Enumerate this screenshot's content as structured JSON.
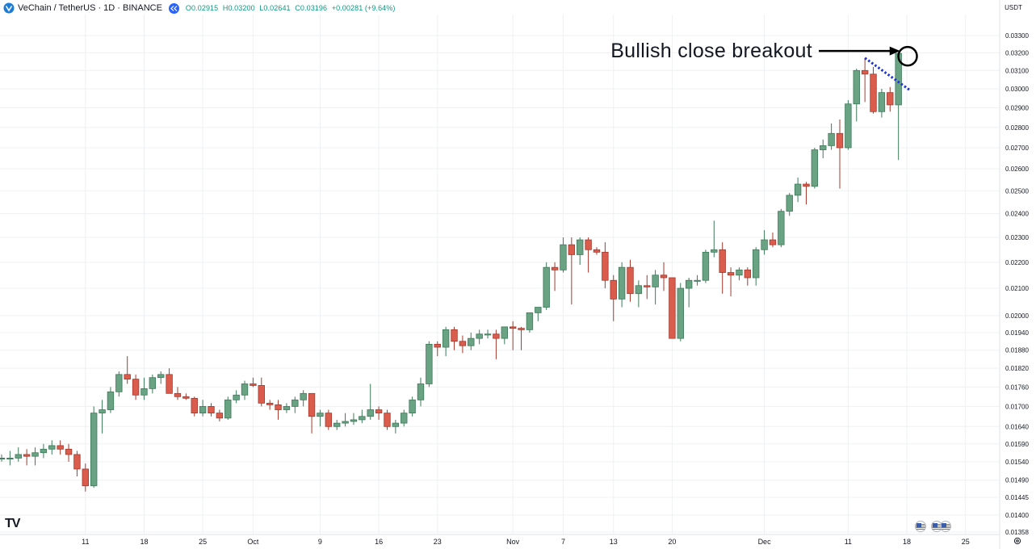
{
  "header": {
    "symbol_title": "VeChain / TetherUS · 1D · BINANCE",
    "ohlc": {
      "open": "O0.02915",
      "high": "H0.03200",
      "low": "L0.02641",
      "close": "C0.03196",
      "change": "+0.00281 (+9.64%)"
    },
    "currency": "USDT"
  },
  "annotation": {
    "text": "Bullish close breakout"
  },
  "logo": "TV",
  "colors": {
    "up": "#6aa383",
    "down": "#d95c4d",
    "grid": "#eef0f3",
    "trend": "#1f33d6"
  },
  "chart_data": {
    "type": "candlestick",
    "title": "VeChain / TetherUS · 1D · BINANCE",
    "xlabel": "",
    "ylabel": "USDT",
    "y_axis_ticks": [
      0.033,
      0.032,
      0.031,
      0.03,
      0.029,
      0.028,
      0.027,
      0.026,
      0.025,
      0.024,
      0.023,
      0.022,
      0.021,
      0.02,
      0.0194,
      0.0188,
      0.0182,
      0.0176,
      0.017,
      0.0164,
      0.0159,
      0.0154,
      0.0149,
      0.01445,
      0.014,
      0.01358
    ],
    "y_axis_labels": [
      "0.03300",
      "0.03200",
      "0.03100",
      "0.03000",
      "0.02900",
      "0.02800",
      "0.02700",
      "0.02600",
      "0.02500",
      "0.02400",
      "0.02300",
      "0.02200",
      "0.02100",
      "0.02000",
      "0.01940",
      "0.01880",
      "0.01820",
      "0.01760",
      "0.01700",
      "0.01640",
      "0.01590",
      "0.01540",
      "0.01490",
      "0.01445",
      "0.01400",
      "0.01358"
    ],
    "x_axis_ticks": [
      {
        "label": "11",
        "index": 10
      },
      {
        "label": "18",
        "index": 17
      },
      {
        "label": "25",
        "index": 24
      },
      {
        "label": "Oct",
        "index": 30
      },
      {
        "label": "9",
        "index": 38
      },
      {
        "label": "16",
        "index": 45
      },
      {
        "label": "23",
        "index": 52
      },
      {
        "label": "Nov",
        "index": 61
      },
      {
        "label": "7",
        "index": 67
      },
      {
        "label": "13",
        "index": 73
      },
      {
        "label": "20",
        "index": 80
      },
      {
        "label": "Dec",
        "index": 91
      },
      {
        "label": "11",
        "index": 101
      },
      {
        "label": "18",
        "index": 108
      },
      {
        "label": "25",
        "index": 115
      }
    ],
    "candles": [
      [
        0.0155,
        0.0156,
        0.0154,
        0.0155
      ],
      [
        0.0155,
        0.0157,
        0.0153,
        0.0155
      ],
      [
        0.0155,
        0.0158,
        0.0154,
        0.0156
      ],
      [
        0.0156,
        0.01575,
        0.0153,
        0.01555
      ],
      [
        0.01555,
        0.0158,
        0.0153,
        0.01565
      ],
      [
        0.01565,
        0.0159,
        0.0155,
        0.01575
      ],
      [
        0.01575,
        0.016,
        0.0156,
        0.01585
      ],
      [
        0.01585,
        0.016,
        0.0156,
        0.01575
      ],
      [
        0.01575,
        0.0159,
        0.0154,
        0.0156
      ],
      [
        0.0156,
        0.0157,
        0.015,
        0.0152
      ],
      [
        0.0152,
        0.01535,
        0.0146,
        0.01475
      ],
      [
        0.01475,
        0.017,
        0.0147,
        0.0168
      ],
      [
        0.0168,
        0.0172,
        0.0162,
        0.0169
      ],
      [
        0.0169,
        0.0176,
        0.0168,
        0.01745
      ],
      [
        0.01745,
        0.0181,
        0.0173,
        0.018
      ],
      [
        0.018,
        0.0186,
        0.0177,
        0.01785
      ],
      [
        0.01785,
        0.018,
        0.0172,
        0.01735
      ],
      [
        0.01735,
        0.0179,
        0.0172,
        0.01755
      ],
      [
        0.01755,
        0.018,
        0.0174,
        0.0179
      ],
      [
        0.0179,
        0.0181,
        0.0177,
        0.018
      ],
      [
        0.018,
        0.0182,
        0.0174,
        0.0174
      ],
      [
        0.0174,
        0.0176,
        0.0172,
        0.0173
      ],
      [
        0.0173,
        0.0174,
        0.0172,
        0.01725
      ],
      [
        0.01725,
        0.0173,
        0.0167,
        0.0168
      ],
      [
        0.0168,
        0.0172,
        0.0167,
        0.017
      ],
      [
        0.017,
        0.0171,
        0.0167,
        0.0168
      ],
      [
        0.0168,
        0.0169,
        0.01655,
        0.01665
      ],
      [
        0.01665,
        0.0173,
        0.0166,
        0.0172
      ],
      [
        0.0172,
        0.0175,
        0.0171,
        0.01735
      ],
      [
        0.01735,
        0.0178,
        0.0172,
        0.0177
      ],
      [
        0.0177,
        0.0179,
        0.0176,
        0.01765
      ],
      [
        0.01765,
        0.0179,
        0.017,
        0.0171
      ],
      [
        0.0171,
        0.0172,
        0.0169,
        0.01705
      ],
      [
        0.01705,
        0.0172,
        0.0166,
        0.0169
      ],
      [
        0.0169,
        0.0171,
        0.0168,
        0.017
      ],
      [
        0.017,
        0.0173,
        0.0168,
        0.0172
      ],
      [
        0.0172,
        0.0175,
        0.017,
        0.0174
      ],
      [
        0.0174,
        0.0174,
        0.0162,
        0.0167
      ],
      [
        0.0167,
        0.0169,
        0.0164,
        0.0168
      ],
      [
        0.0168,
        0.0169,
        0.0163,
        0.0164
      ],
      [
        0.0164,
        0.0166,
        0.0163,
        0.0165
      ],
      [
        0.0165,
        0.0168,
        0.0164,
        0.01655
      ],
      [
        0.01655,
        0.0168,
        0.01645,
        0.0166
      ],
      [
        0.0166,
        0.0169,
        0.0165,
        0.0167
      ],
      [
        0.0167,
        0.0177,
        0.0166,
        0.0169
      ],
      [
        0.0169,
        0.017,
        0.0166,
        0.0168
      ],
      [
        0.0168,
        0.0169,
        0.0163,
        0.0164
      ],
      [
        0.0164,
        0.0166,
        0.0162,
        0.0165
      ],
      [
        0.0165,
        0.0169,
        0.0164,
        0.0168
      ],
      [
        0.0168,
        0.0173,
        0.0167,
        0.0172
      ],
      [
        0.0172,
        0.0179,
        0.017,
        0.0177
      ],
      [
        0.0177,
        0.0191,
        0.0176,
        0.019
      ],
      [
        0.019,
        0.0191,
        0.0186,
        0.0189
      ],
      [
        0.0189,
        0.0196,
        0.0186,
        0.0195
      ],
      [
        0.0195,
        0.0196,
        0.0188,
        0.0191
      ],
      [
        0.0191,
        0.0193,
        0.0187,
        0.01895
      ],
      [
        0.01895,
        0.0194,
        0.0188,
        0.0192
      ],
      [
        0.0192,
        0.0195,
        0.019,
        0.01935
      ],
      [
        0.01935,
        0.0195,
        0.0192,
        0.01935
      ],
      [
        0.01935,
        0.0195,
        0.0185,
        0.0192
      ],
      [
        0.0192,
        0.0196,
        0.019,
        0.0196
      ],
      [
        0.0196,
        0.0198,
        0.0188,
        0.01955
      ],
      [
        0.01955,
        0.0196,
        0.0188,
        0.0195
      ],
      [
        0.0195,
        0.0201,
        0.0194,
        0.0201
      ],
      [
        0.0201,
        0.0203,
        0.0198,
        0.0203
      ],
      [
        0.0203,
        0.022,
        0.0202,
        0.0218
      ],
      [
        0.0218,
        0.022,
        0.0209,
        0.0217
      ],
      [
        0.0217,
        0.023,
        0.0216,
        0.0227
      ],
      [
        0.0227,
        0.023,
        0.0204,
        0.0223
      ],
      [
        0.0223,
        0.023,
        0.0219,
        0.0229
      ],
      [
        0.0229,
        0.023,
        0.0216,
        0.0225
      ],
      [
        0.0225,
        0.0226,
        0.0223,
        0.0224
      ],
      [
        0.0224,
        0.0228,
        0.021,
        0.0213
      ],
      [
        0.0213,
        0.0215,
        0.0198,
        0.0206
      ],
      [
        0.0206,
        0.022,
        0.0203,
        0.0218
      ],
      [
        0.0218,
        0.0221,
        0.0205,
        0.0208
      ],
      [
        0.0208,
        0.0213,
        0.0203,
        0.0211
      ],
      [
        0.0211,
        0.0215,
        0.0206,
        0.02105
      ],
      [
        0.02105,
        0.0217,
        0.0204,
        0.0215
      ],
      [
        0.0215,
        0.022,
        0.0209,
        0.0214
      ],
      [
        0.0214,
        0.0214,
        0.0192,
        0.0192
      ],
      [
        0.0192,
        0.0212,
        0.0191,
        0.021
      ],
      [
        0.021,
        0.0214,
        0.0203,
        0.0213
      ],
      [
        0.0213,
        0.0215,
        0.0211,
        0.0213
      ],
      [
        0.0213,
        0.0225,
        0.0212,
        0.0224
      ],
      [
        0.0224,
        0.0237,
        0.0222,
        0.0225
      ],
      [
        0.0225,
        0.0228,
        0.0208,
        0.0216
      ],
      [
        0.0216,
        0.0218,
        0.0207,
        0.0215
      ],
      [
        0.0215,
        0.0218,
        0.0213,
        0.0217
      ],
      [
        0.0217,
        0.0218,
        0.0211,
        0.0214
      ],
      [
        0.0214,
        0.0226,
        0.0211,
        0.0225
      ],
      [
        0.0225,
        0.0233,
        0.0223,
        0.0229
      ],
      [
        0.0229,
        0.0232,
        0.0226,
        0.0227
      ],
      [
        0.0227,
        0.0242,
        0.0226,
        0.0241
      ],
      [
        0.0241,
        0.0249,
        0.0239,
        0.0248
      ],
      [
        0.0248,
        0.0256,
        0.0245,
        0.0253
      ],
      [
        0.0253,
        0.0254,
        0.0244,
        0.0252
      ],
      [
        0.0252,
        0.027,
        0.0251,
        0.0269
      ],
      [
        0.0269,
        0.0274,
        0.0265,
        0.0271
      ],
      [
        0.0271,
        0.0282,
        0.0269,
        0.0277
      ],
      [
        0.0277,
        0.0284,
        0.0251,
        0.027
      ],
      [
        0.027,
        0.0294,
        0.0269,
        0.0292
      ],
      [
        0.0292,
        0.0311,
        0.0283,
        0.031
      ],
      [
        0.031,
        0.0317,
        0.0293,
        0.0308
      ],
      [
        0.0308,
        0.0312,
        0.0287,
        0.0288
      ],
      [
        0.0288,
        0.03,
        0.0285,
        0.0298
      ],
      [
        0.0298,
        0.0301,
        0.0288,
        0.02915
      ],
      [
        0.02915,
        0.032,
        0.02641,
        0.03196
      ]
    ],
    "trendline": {
      "from": {
        "index": 103,
        "value": 0.0317
      },
      "to": {
        "index": 108.3,
        "value": 0.02995
      },
      "style": "dotted"
    },
    "highlight": {
      "index": 108,
      "value": 0.0318,
      "shape": "circle"
    },
    "arrow": {
      "from_label": "Bullish close breakout",
      "to_index": 107.2,
      "value": 0.0321
    }
  }
}
